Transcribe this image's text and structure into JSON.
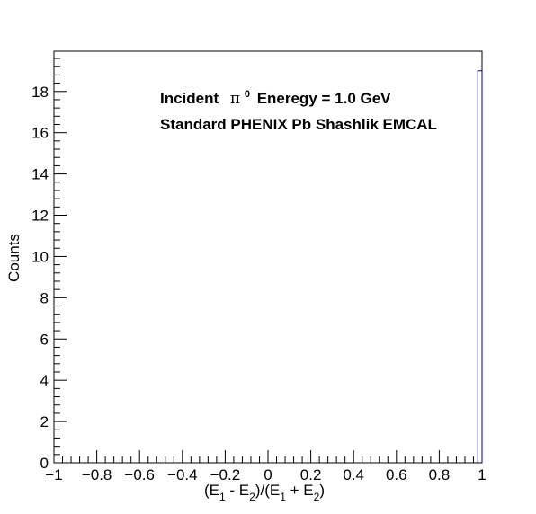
{
  "chart_data": {
    "type": "bar",
    "xlabel": "(E_1 - E_2)/(E_1 + E_2)",
    "ylabel": "Counts",
    "xlim": [
      -1,
      1
    ],
    "ylim": [
      0,
      19.95
    ],
    "x_ticks": [
      "−1",
      "−0.8",
      "−0.6",
      "−0.4",
      "−0.2",
      "0",
      "0.2",
      "0.4",
      "0.6",
      "0.8",
      "1"
    ],
    "y_ticks": [
      "0",
      "2",
      "4",
      "6",
      "8",
      "10",
      "12",
      "14",
      "16",
      "18"
    ],
    "bins": [
      {
        "x_low": 0.98,
        "x_high": 1.0,
        "value": 19
      }
    ],
    "annotations": [
      {
        "id": "line1",
        "prefix": "Incident",
        "symbol": "π",
        "superscript": "0",
        "suffix": "Eneregy = 1.0 GeV"
      },
      {
        "id": "line2",
        "text": "Standard PHENIX Pb Shashlik EMCAL"
      }
    ],
    "grid": false,
    "line_color": "#000080"
  },
  "xlabel_parts": {
    "open": "(E",
    "sub1": "1",
    "mid1": " - E",
    "sub2": "2",
    "mid2": ")/(E",
    "sub3": "1",
    "mid3": " + E",
    "sub4": "2",
    "close": ")"
  }
}
